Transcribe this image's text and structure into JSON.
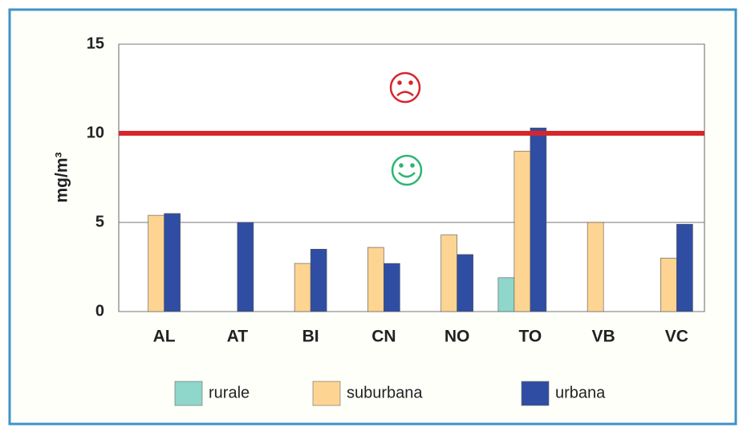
{
  "chart_data": {
    "type": "bar",
    "y_label": "mg/m³",
    "categories": [
      "AL",
      "AT",
      "BI",
      "CN",
      "NO",
      "TO",
      "VB",
      "VC"
    ],
    "series": [
      {
        "name": "rurale",
        "color": "#8fd6cb",
        "values": [
          null,
          null,
          null,
          null,
          null,
          1.9,
          null,
          null
        ]
      },
      {
        "name": "suburbana",
        "color": "#fdd491",
        "values": [
          5.4,
          null,
          2.7,
          3.6,
          4.3,
          9.0,
          5.0,
          3.0
        ]
      },
      {
        "name": "urbana",
        "color": "#2f4ea3",
        "values": [
          5.5,
          5.0,
          3.5,
          2.7,
          3.2,
          10.3,
          null,
          4.9
        ]
      }
    ],
    "threshold": 10,
    "threshold_color": "#d7262b",
    "ylim": [
      0,
      15
    ],
    "yticks": [
      0,
      5,
      10,
      15
    ],
    "grid": true,
    "legend": "bottom"
  }
}
